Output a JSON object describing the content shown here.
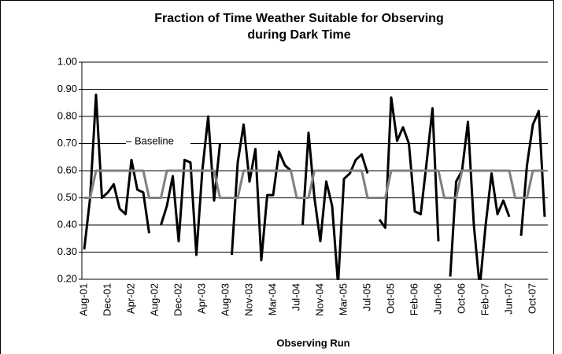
{
  "chart_data": {
    "type": "line",
    "title": [
      "Fraction of Time Weather Suitable for Observing",
      "during Dark Time"
    ],
    "x_label": "Observing Run",
    "annotation": "Baseline",
    "categories": [
      "Aug-01",
      null,
      null,
      null,
      "Dec-01",
      null,
      null,
      null,
      "Apr-02",
      null,
      null,
      null,
      "Aug-02",
      null,
      null,
      null,
      "Dec-02",
      null,
      null,
      null,
      "Apr-03",
      null,
      null,
      null,
      "Aug-03",
      null,
      null,
      null,
      "Nov-03",
      null,
      null,
      null,
      "Mar-04",
      null,
      null,
      null,
      "Jul-04",
      null,
      null,
      null,
      "Nov-04",
      null,
      null,
      null,
      "Mar-05",
      null,
      null,
      null,
      "Jul-05",
      null,
      null,
      null,
      "Oct-05",
      null,
      null,
      null,
      "Feb-06",
      null,
      null,
      null,
      "Jun-06",
      null,
      null,
      null,
      "Oct-06",
      null,
      null,
      null,
      "Feb-07",
      null,
      null,
      null,
      "Jun-07",
      null,
      null,
      null,
      "Oct-07",
      null,
      null
    ],
    "series": [
      {
        "color": "#000000",
        "values": [
          0.31,
          0.5,
          0.88,
          0.5,
          0.52,
          0.55,
          0.46,
          0.44,
          0.64,
          0.53,
          0.52,
          0.37,
          null,
          0.4,
          0.47,
          0.58,
          0.34,
          0.64,
          0.63,
          0.29,
          0.6,
          0.8,
          0.49,
          0.7,
          null,
          0.29,
          0.63,
          0.77,
          0.56,
          0.68,
          0.27,
          0.51,
          0.51,
          0.67,
          0.62,
          0.6,
          null,
          0.4,
          0.74,
          0.5,
          0.34,
          0.56,
          0.47,
          0.18,
          0.57,
          0.59,
          0.64,
          0.66,
          0.59,
          null,
          0.42,
          0.39,
          0.87,
          0.71,
          0.76,
          0.7,
          0.45,
          0.44,
          0.63,
          0.83,
          0.34,
          null,
          0.21,
          0.56,
          0.6,
          0.78,
          0.4,
          0.17,
          0.4,
          0.59,
          0.44,
          0.49,
          0.43,
          null,
          0.36,
          0.62,
          0.77,
          0.82,
          0.43
        ]
      },
      {
        "name": "Baseline",
        "color": "#808080",
        "values": [
          0.5,
          0.5,
          0.6,
          0.6,
          0.6,
          0.6,
          0.6,
          0.6,
          0.6,
          0.6,
          0.6,
          0.5,
          0.5,
          0.5,
          0.6,
          0.6,
          0.6,
          0.6,
          0.6,
          0.6,
          0.6,
          0.6,
          0.6,
          0.5,
          0.5,
          0.5,
          0.5,
          0.6,
          0.6,
          0.6,
          0.6,
          0.6,
          0.6,
          0.6,
          0.6,
          0.6,
          0.5,
          0.5,
          0.5,
          0.6,
          0.6,
          0.6,
          0.6,
          0.6,
          0.6,
          0.6,
          0.6,
          0.6,
          0.5,
          0.5,
          0.5,
          0.5,
          0.6,
          0.6,
          0.6,
          0.6,
          0.6,
          0.6,
          0.6,
          0.6,
          0.6,
          0.5,
          0.5,
          0.5,
          0.6,
          0.6,
          0.6,
          0.6,
          0.6,
          0.6,
          0.6,
          0.6,
          0.6,
          0.5,
          0.5,
          0.5,
          0.6,
          0.6,
          0.6
        ]
      }
    ],
    "ylim": [
      0.2,
      1.0
    ],
    "yticks": [
      {
        "value": 0.2,
        "label": "0.20"
      },
      {
        "value": 0.3,
        "label": "0.30"
      },
      {
        "value": 0.4,
        "label": "0.40"
      },
      {
        "value": 0.5,
        "label": "0.50"
      },
      {
        "value": 0.6,
        "label": "0.60"
      },
      {
        "value": 0.7,
        "label": "0.70"
      },
      {
        "value": 0.8,
        "label": "0.80"
      },
      {
        "value": 0.9,
        "label": "0.90"
      },
      {
        "value": 1.0,
        "label": "1.00"
      }
    ],
    "grid": true
  }
}
